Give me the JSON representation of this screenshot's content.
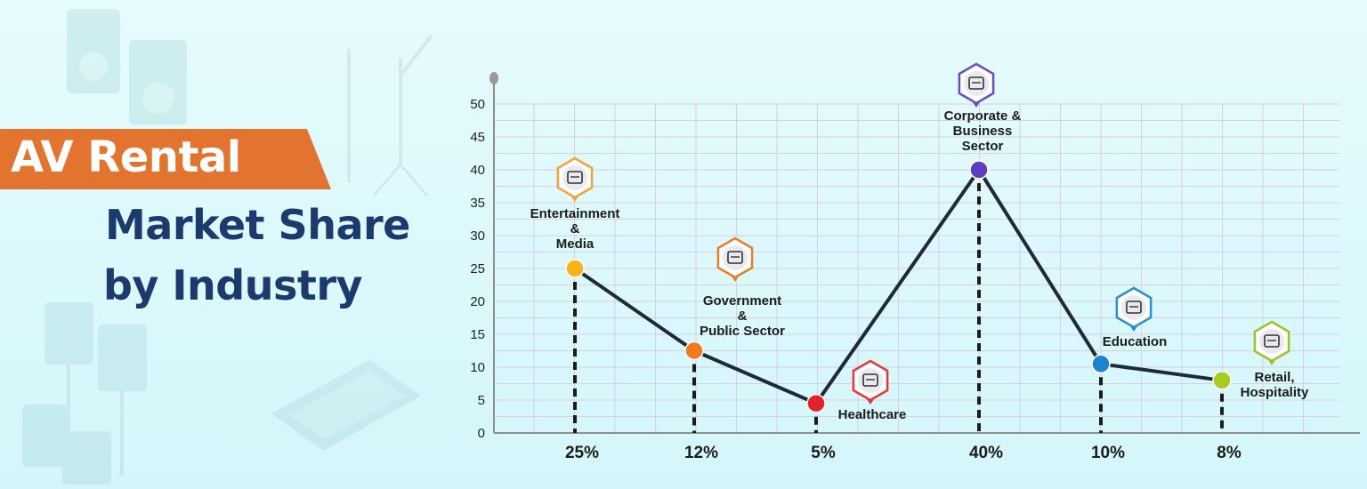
{
  "title": {
    "line1": "AV Rental",
    "line2": "Market Share",
    "line3": "by Industry"
  },
  "colors": {
    "band": "#e3742f",
    "heading": "#1d3a6e",
    "line": "#1f2a36",
    "grid": "#d7cfe3"
  },
  "chart_data": {
    "type": "line",
    "ylim": [
      0,
      50
    ],
    "yticks": [
      "0",
      "5",
      "10",
      "15",
      "20",
      "25",
      "30",
      "35",
      "40",
      "45",
      "50"
    ],
    "grid": true,
    "points": [
      {
        "label_lines": [
          "Entertainment",
          "&",
          "Media"
        ],
        "value": 25,
        "pct": "25%",
        "color": "#f7b318",
        "icon": "entertainment-media-icon",
        "icon_color": "#f2a23a"
      },
      {
        "label_lines": [
          "Government",
          "&",
          "Public Sector"
        ],
        "value": 12.5,
        "pct": "12%",
        "color": "#f07a1e",
        "icon": "government-building-icon",
        "icon_color": "#ea7d2b"
      },
      {
        "label_lines": [
          "Healthcare"
        ],
        "value": 4.5,
        "pct": "5%",
        "color": "#e3232b",
        "icon": "healthcare-hands-icon",
        "icon_color": "#e23a3a"
      },
      {
        "label_lines": [
          "Corporate &",
          "Business",
          "Sector"
        ],
        "value": 40,
        "pct": "40%",
        "color": "#5a3fc0",
        "icon": "corporate-office-icon",
        "icon_color": "#6a4fc4"
      },
      {
        "label_lines": [
          "Education"
        ],
        "value": 10.5,
        "pct": "10%",
        "color": "#1b86cf",
        "icon": "education-cap-icon",
        "icon_color": "#2a8fd0"
      },
      {
        "label_lines": [
          "Retail,",
          "Hospitality"
        ],
        "value": 8,
        "pct": "8%",
        "color": "#a5cc1f",
        "icon": "retail-chart-icon",
        "icon_color": "#9cc42a"
      }
    ]
  }
}
